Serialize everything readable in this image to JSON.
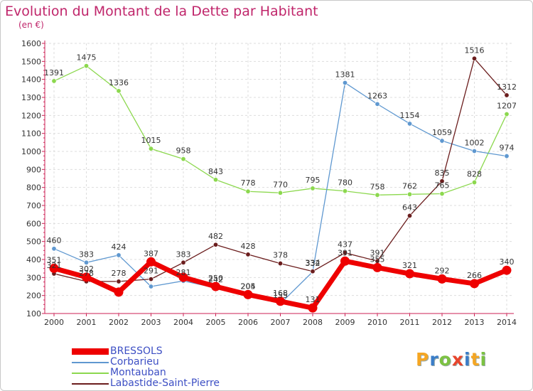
{
  "chart_data": {
    "type": "line",
    "title": "Evolution du Montant de la Dette par Habitant",
    "subtitle": "(en €)",
    "x": [
      "2000",
      "2001",
      "2002",
      "2003",
      "2004",
      "2005",
      "2006",
      "2007",
      "2008",
      "2009",
      "2010",
      "2011",
      "2012",
      "2013",
      "2014"
    ],
    "ylim": [
      100,
      1600
    ],
    "yticks": [
      100,
      200,
      300,
      400,
      500,
      600,
      700,
      800,
      900,
      1000,
      1100,
      1200,
      1300,
      1400,
      1500,
      1600
    ],
    "grid": true,
    "legend_position": "bottom-left",
    "series": [
      {
        "name": "BRESSOLS",
        "color": "#ee0000",
        "values": [
          351,
          302,
          219,
          387,
          301,
          250,
          205,
          168,
          131,
          391,
          355,
          321,
          292,
          266,
          340
        ],
        "labels": [
          "351",
          "302",
          "",
          "387",
          "",
          "250",
          "205",
          "168",
          "131",
          "391",
          "355",
          "321",
          "292",
          "266",
          "340"
        ]
      },
      {
        "name": "Corbarieu",
        "color": "#5f98d0",
        "values": [
          460,
          383,
          424,
          250,
          281,
          242,
          204,
          155,
          332,
          1381,
          1263,
          1154,
          1059,
          1002,
          974
        ],
        "labels": [
          "460",
          "383",
          "424",
          "",
          "281",
          "242",
          "204",
          "155",
          "332",
          "1381",
          "1263",
          "1154",
          "1059",
          "1002",
          "974"
        ]
      },
      {
        "name": "Montauban",
        "color": "#8cd84e",
        "values": [
          1391,
          1475,
          1336,
          1015,
          958,
          843,
          778,
          770,
          795,
          780,
          758,
          762,
          765,
          828,
          1207
        ],
        "labels": [
          "1391",
          "1475",
          "1336",
          "1015",
          "958",
          "843",
          "778",
          "770",
          "795",
          "780",
          "758",
          "762",
          "765",
          "828",
          "1207"
        ]
      },
      {
        "name": "Labastide-Saint-Pierre",
        "color": "#6b1d1d",
        "values": [
          321,
          278,
          278,
          291,
          383,
          482,
          428,
          378,
          334,
          437,
          391,
          643,
          835,
          1516,
          1312
        ],
        "labels": [
          "321",
          "278",
          "278",
          "291",
          "383",
          "482",
          "428",
          "378",
          "334",
          "437",
          "391",
          "643",
          "835",
          "1516",
          "1312"
        ]
      }
    ]
  },
  "logo": {
    "letters": [
      "P",
      "r",
      "o",
      "x",
      "i",
      "t",
      "i"
    ],
    "colors": [
      "#f5a623",
      "#3a7dc8",
      "#7cc242",
      "#e8452c",
      "#3a7dc8",
      "#f5a623",
      "#7cc242"
    ]
  }
}
